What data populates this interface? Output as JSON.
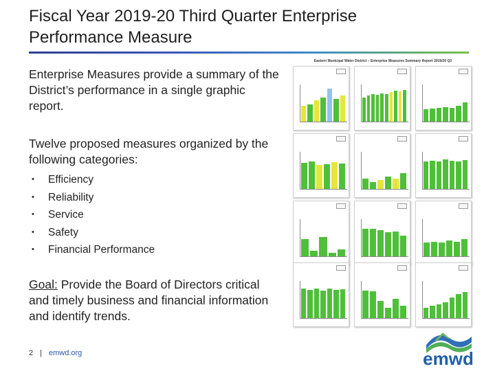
{
  "slide": {
    "title": "Fiscal Year 2019-20 Third Quarter Enterprise Performance Measure",
    "intro": "Enterprise Measures provide a summary of the District’s performance in a single graphic report.",
    "categories_intro": "Twelve proposed measures organized by the following categories:",
    "categories": [
      "Efficiency",
      "Reliability",
      "Service",
      "Safety",
      "Financial Performance"
    ],
    "goal_label": "Goal:",
    "goal_text": "  Provide the Board of Directors critical and timely business and financial information and identify trends.",
    "footer": {
      "page": "2",
      "separator": "|",
      "url": "emwd.org"
    },
    "logo_text": "emwd"
  },
  "report_thumbnail": {
    "title": "Eastern Municipal Water District – Enterprise Measures Summary Report 2019/20 Q3",
    "panels": [
      {
        "bars": [
          0.45,
          0.5,
          0.62,
          0.7,
          0.95,
          0.65,
          0.75
        ],
        "style": "yellow-mixed"
      },
      {
        "bars": [
          0.7,
          0.75,
          0.8,
          0.78,
          0.82,
          0.8,
          0.85,
          0.9,
          0.88,
          0.92
        ],
        "style": "green-yellow"
      },
      {
        "bars": [
          0.35,
          0.38,
          0.4,
          0.42,
          0.4,
          0.45,
          0.55
        ],
        "style": "green"
      },
      {
        "bars": [
          0.75,
          0.8,
          0.7,
          0.72,
          0.78,
          0.74
        ],
        "style": "green-yellow"
      },
      {
        "bars": [
          0.3,
          0.2,
          0.25,
          0.35,
          0.3,
          0.45
        ],
        "style": "green-yellow"
      },
      {
        "bars": [
          0.8,
          0.82,
          0.8,
          0.85,
          0.82,
          0.8,
          0.84
        ],
        "style": "green"
      },
      {
        "bars": [
          0.5,
          0.15,
          0.55,
          0.1,
          0.2
        ],
        "style": "green"
      },
      {
        "bars": [
          0.8,
          0.8,
          0.75,
          0.7,
          0.72,
          0.6
        ],
        "style": "green"
      },
      {
        "bars": [
          0.4,
          0.42,
          0.4,
          0.45,
          0.42,
          0.5
        ],
        "style": "green"
      },
      {
        "bars": [
          0.85,
          0.82,
          0.85,
          0.8,
          0.85,
          0.82,
          0.84
        ],
        "style": "green"
      },
      {
        "bars": [
          0.8,
          0.78,
          0.5,
          0.3,
          0.55,
          0.35
        ],
        "style": "green"
      },
      {
        "bars": [
          0.3,
          0.35,
          0.4,
          0.45,
          0.6,
          0.7,
          0.75
        ],
        "style": "green"
      }
    ]
  }
}
